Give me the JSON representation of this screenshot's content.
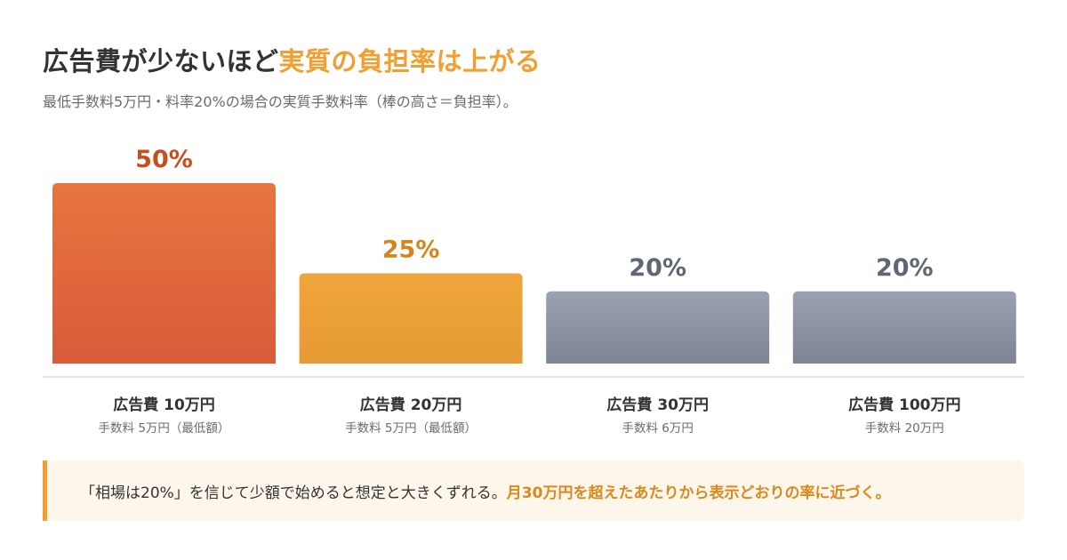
{
  "title": {
    "main": "広告費が少ないほど",
    "accent": "実質の負担率は上がる"
  },
  "subtitle": "最低手数料5万円・料率20%の場合の実質手数料率（棒の高さ＝負担率）。",
  "chart_data": {
    "type": "bar",
    "categories": [
      "広告費 10万円",
      "広告費 20万円",
      "広告費 30万円",
      "広告費 100万円"
    ],
    "sublabels": [
      "手数料 5万円（最低額）",
      "手数料 5万円（最低額）",
      "手数料 6万円",
      "手数料 20万円"
    ],
    "values": [
      50,
      25,
      20,
      20
    ],
    "value_labels": [
      "50%",
      "25%",
      "20%",
      "20%"
    ],
    "ylim": [
      0,
      50
    ],
    "grid": false,
    "colors": {
      "bar_top": [
        "#e87440",
        "#f0a53c",
        "#9aa2b0",
        "#9aa2b0"
      ],
      "bar_bottom": [
        "#d85c38",
        "#e69a34",
        "#7d8595",
        "#7d8595"
      ],
      "value_text": [
        "#c4501f",
        "#d4861c",
        "#5f6675",
        "#5f6675"
      ]
    }
  },
  "note": {
    "text": "「相場は20%」を信じて少額で始めると想定と大きくずれる。",
    "emphasis": "月30万円を超えたあたりから表示どおりの率に近づく。"
  },
  "colors": {
    "accent": "#f0a030",
    "note_background": "#fdf6ea",
    "baseline": "#d9d9d9"
  }
}
